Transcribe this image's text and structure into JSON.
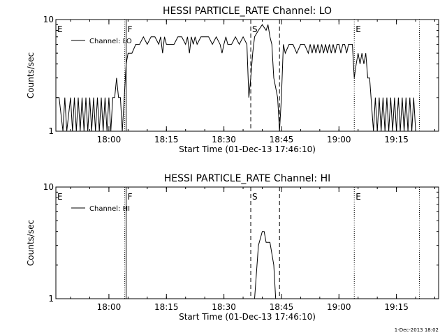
{
  "chart_data": [
    {
      "type": "line",
      "title": "HESSI PARTICLE_RATE Channel: LO",
      "xlabel": "Start Time (01-Dec-13 17:46:10)",
      "ylabel": "Counts/sec",
      "y_scale": "log",
      "ylim": [
        1,
        10
      ],
      "y_ticks": [
        "1",
        "10"
      ],
      "xlim": [
        "17:46:10",
        "19:26:00"
      ],
      "x_ticks": [
        "18:00",
        "18:15",
        "18:30",
        "18:45",
        "19:00",
        "19:15"
      ],
      "legend": {
        "position": "top-left",
        "entries": [
          "Channel: LO"
        ]
      },
      "markers": [
        {
          "label": "E",
          "time": "17:46:10",
          "style": "none"
        },
        {
          "label": "F",
          "time": "18:04:30",
          "style": "solid"
        },
        {
          "label": "S",
          "time": "18:37:00",
          "style": "dashed"
        },
        {
          "label": "",
          "time": "18:44:30",
          "style": "dashed"
        },
        {
          "label": "E",
          "time": "19:04:00",
          "style": "dotted"
        },
        {
          "label": "",
          "time": "19:21:00",
          "style": "dotted"
        }
      ],
      "series": [
        {
          "x": [
            "17:46:10",
            "17:47:00",
            "17:48:00",
            "17:48:30",
            "17:49:00",
            "17:50:00",
            "17:50:30",
            "17:51:00",
            "17:51:30",
            "17:52:00",
            "17:52:30",
            "17:53:00",
            "17:53:30",
            "17:54:00",
            "17:54:30",
            "17:55:00",
            "17:55:30",
            "17:56:00",
            "17:56:30",
            "17:57:00",
            "17:57:30",
            "17:58:00",
            "17:58:30",
            "17:59:00",
            "17:59:30",
            "18:00:00",
            "18:00:30",
            "18:01:00",
            "18:01:30",
            "18:02:00",
            "18:02:30",
            "18:03:00",
            "18:03:30",
            "18:04:00",
            "18:04:30",
            "18:05:00",
            "18:06:00",
            "18:07:00",
            "18:08:00",
            "18:09:00",
            "18:10:00",
            "18:11:00",
            "18:12:00",
            "18:13:00",
            "18:13:30",
            "18:14:00",
            "18:14:30",
            "18:15:00",
            "18:16:00",
            "18:17:00",
            "18:18:00",
            "18:19:00",
            "18:20:00",
            "18:20:30",
            "18:21:00",
            "18:21:30",
            "18:22:00",
            "18:22:30",
            "18:23:00",
            "18:24:00",
            "18:25:00",
            "18:26:00",
            "18:27:00",
            "18:28:00",
            "18:29:00",
            "18:29:30",
            "18:30:00",
            "18:30:30",
            "18:31:00",
            "18:32:00",
            "18:33:00",
            "18:34:00",
            "18:35:00",
            "18:36:00",
            "18:36:30",
            "18:37:00",
            "18:37:30",
            "18:38:00",
            "18:39:00",
            "18:40:00",
            "18:41:00",
            "18:41:30",
            "18:42:00",
            "18:42:30",
            "18:43:00",
            "18:44:00",
            "18:44:30",
            "18:45:00",
            "18:45:30",
            "18:46:00",
            "18:47:00",
            "18:48:00",
            "18:49:00",
            "18:50:00",
            "18:51:00",
            "18:52:00",
            "18:52:30",
            "18:53:00",
            "18:53:30",
            "18:54:00",
            "18:54:30",
            "18:55:00",
            "18:55:30",
            "18:56:00",
            "18:56:30",
            "18:57:00",
            "18:57:30",
            "18:58:00",
            "18:58:30",
            "18:59:00",
            "18:59:30",
            "19:00:00",
            "19:00:30",
            "19:01:00",
            "19:01:30",
            "19:02:00",
            "19:02:30",
            "19:03:00",
            "19:03:30",
            "19:04:00",
            "19:04:30",
            "19:05:00",
            "19:05:30",
            "19:06:00",
            "19:06:30",
            "19:07:00",
            "19:07:30",
            "19:08:00",
            "19:09:00",
            "19:09:30",
            "19:10:00",
            "19:10:30",
            "19:11:00",
            "19:11:30",
            "19:12:00",
            "19:12:30",
            "19:13:00",
            "19:13:30",
            "19:14:00",
            "19:14:30",
            "19:15:00",
            "19:15:30",
            "19:16:00",
            "19:16:30",
            "19:17:00",
            "19:17:30",
            "19:18:00",
            "19:18:30",
            "19:19:00",
            "19:19:30",
            "19:20:00"
          ],
          "y": [
            2,
            2,
            1,
            2,
            1,
            2,
            1,
            2,
            1,
            2,
            1,
            2,
            1,
            2,
            1,
            2,
            1,
            2,
            1,
            2,
            1,
            2,
            1,
            2,
            1,
            2,
            1,
            2,
            2,
            3,
            2,
            2,
            1,
            2,
            4,
            5,
            5,
            6,
            6,
            7,
            6,
            7,
            7,
            6,
            7,
            5,
            7,
            6,
            6,
            6,
            7,
            7,
            6,
            7,
            5,
            7,
            6,
            7,
            6,
            7,
            7,
            7,
            6,
            7,
            6,
            5,
            6,
            7,
            6,
            6,
            7,
            6,
            7,
            6,
            2,
            3,
            5,
            7,
            8,
            9,
            8,
            9,
            7,
            6,
            3,
            2,
            1,
            2,
            6,
            5,
            6,
            6,
            5,
            6,
            6,
            5,
            6,
            5,
            6,
            5,
            6,
            5,
            6,
            5,
            6,
            5,
            6,
            5,
            6,
            5,
            6,
            6,
            5,
            6,
            6,
            5,
            6,
            6,
            6,
            3,
            4,
            5,
            4,
            5,
            4,
            5,
            3,
            3,
            1,
            2,
            1,
            2,
            1,
            2,
            1,
            2,
            1,
            2,
            1,
            2,
            1,
            2,
            1,
            2,
            1,
            2,
            1,
            2,
            1,
            2,
            1
          ]
        }
      ]
    },
    {
      "type": "line",
      "title": "HESSI PARTICLE_RATE Channel: HI",
      "xlabel": "Start Time (01-Dec-13 17:46:10)",
      "ylabel": "Counts/sec",
      "y_scale": "log",
      "ylim": [
        1,
        10
      ],
      "y_ticks": [
        "1",
        "10"
      ],
      "xlim": [
        "17:46:10",
        "19:26:00"
      ],
      "x_ticks": [
        "18:00",
        "18:15",
        "18:30",
        "18:45",
        "19:00",
        "19:15"
      ],
      "legend": {
        "position": "top-left",
        "entries": [
          "Channel: HI"
        ]
      },
      "markers": [
        {
          "label": "E",
          "time": "17:46:10",
          "style": "none"
        },
        {
          "label": "F",
          "time": "18:04:30",
          "style": "solid"
        },
        {
          "label": "S",
          "time": "18:37:00",
          "style": "dashed"
        },
        {
          "label": "",
          "time": "18:44:30",
          "style": "dashed"
        },
        {
          "label": "E",
          "time": "19:04:00",
          "style": "dotted"
        },
        {
          "label": "",
          "time": "19:21:00",
          "style": "dotted"
        }
      ],
      "series": [
        {
          "x": [
            "18:38:00",
            "18:39:00",
            "18:40:00",
            "18:40:30",
            "18:41:00",
            "18:42:00",
            "18:43:00",
            "18:43:30"
          ],
          "y": [
            1,
            3,
            4,
            4,
            3.2,
            3.2,
            2,
            1
          ]
        }
      ]
    }
  ],
  "footer": {
    "timestamp": "1-Dec-2013 18:02"
  }
}
